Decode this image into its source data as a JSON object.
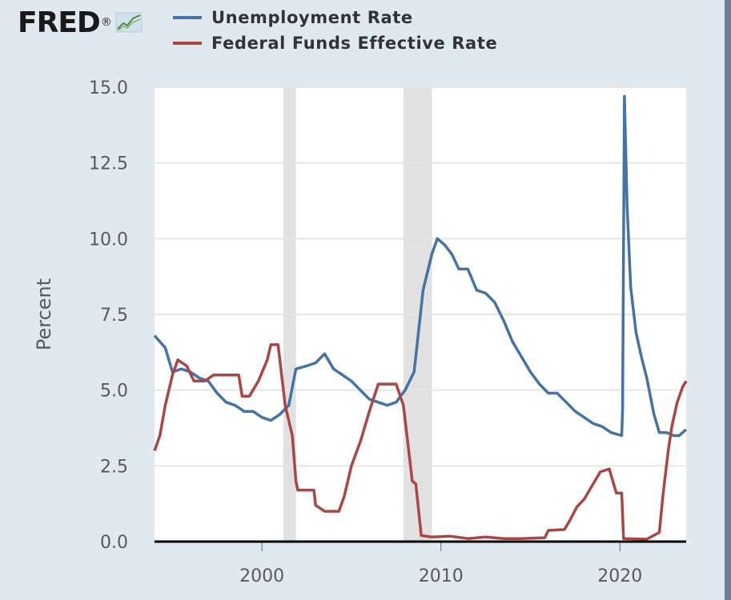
{
  "logo": {
    "text": "FRED",
    "mark": "®",
    "icon": "trend-line-icon"
  },
  "colors": {
    "unemployment": "#4572a7",
    "fedfunds": "#aa4643",
    "recession": "#e1e1e1",
    "grid": "#e6e6e6",
    "plot_bg": "#ffffff",
    "page_bg": "#e1e9f0"
  },
  "chart_data": {
    "type": "line",
    "title": "",
    "xlabel": "",
    "ylabel": "Percent",
    "xlim": [
      1994.0,
      2023.7
    ],
    "ylim": [
      0,
      15
    ],
    "y_ticks": [
      "0.0",
      "2.5",
      "5.0",
      "7.5",
      "10.0",
      "12.5",
      "15.0"
    ],
    "y_tick_values": [
      0,
      2.5,
      5,
      7.5,
      10,
      12.5,
      15
    ],
    "x_ticks": [
      "2000",
      "2010",
      "2020"
    ],
    "x_tick_values": [
      2000,
      2010,
      2020
    ],
    "grid": true,
    "legend_position": "top",
    "recessions": [
      [
        2001.2,
        2001.9
      ],
      [
        2007.9,
        2009.5
      ]
    ],
    "series": [
      {
        "name": "Unemployment Rate",
        "color": "#4572a7",
        "points": [
          [
            1994.0,
            6.8
          ],
          [
            1994.3,
            6.6
          ],
          [
            1994.6,
            6.4
          ],
          [
            1995.0,
            5.6
          ],
          [
            1995.5,
            5.7
          ],
          [
            1996.0,
            5.6
          ],
          [
            1996.5,
            5.4
          ],
          [
            1997.0,
            5.3
          ],
          [
            1997.5,
            4.9
          ],
          [
            1998.0,
            4.6
          ],
          [
            1998.5,
            4.5
          ],
          [
            1999.0,
            4.3
          ],
          [
            1999.5,
            4.3
          ],
          [
            2000.0,
            4.1
          ],
          [
            2000.5,
            4.0
          ],
          [
            2001.0,
            4.2
          ],
          [
            2001.5,
            4.5
          ],
          [
            2001.9,
            5.7
          ],
          [
            2002.5,
            5.8
          ],
          [
            2003.0,
            5.9
          ],
          [
            2003.5,
            6.2
          ],
          [
            2004.0,
            5.7
          ],
          [
            2004.5,
            5.5
          ],
          [
            2005.0,
            5.3
          ],
          [
            2005.5,
            5.0
          ],
          [
            2006.0,
            4.7
          ],
          [
            2006.5,
            4.6
          ],
          [
            2007.0,
            4.5
          ],
          [
            2007.5,
            4.6
          ],
          [
            2008.0,
            5.0
          ],
          [
            2008.5,
            5.6
          ],
          [
            2009.0,
            8.3
          ],
          [
            2009.5,
            9.5
          ],
          [
            2009.8,
            10.0
          ],
          [
            2010.2,
            9.8
          ],
          [
            2010.6,
            9.5
          ],
          [
            2011.0,
            9.0
          ],
          [
            2011.5,
            9.0
          ],
          [
            2012.0,
            8.3
          ],
          [
            2012.5,
            8.2
          ],
          [
            2013.0,
            7.9
          ],
          [
            2013.5,
            7.3
          ],
          [
            2014.0,
            6.6
          ],
          [
            2014.5,
            6.1
          ],
          [
            2015.0,
            5.6
          ],
          [
            2015.5,
            5.2
          ],
          [
            2016.0,
            4.9
          ],
          [
            2016.5,
            4.9
          ],
          [
            2017.0,
            4.6
          ],
          [
            2017.5,
            4.3
          ],
          [
            2018.0,
            4.1
          ],
          [
            2018.5,
            3.9
          ],
          [
            2019.0,
            3.8
          ],
          [
            2019.5,
            3.6
          ],
          [
            2020.1,
            3.5
          ],
          [
            2020.15,
            4.4
          ],
          [
            2020.25,
            14.7
          ],
          [
            2020.4,
            11.1
          ],
          [
            2020.6,
            8.4
          ],
          [
            2020.9,
            6.9
          ],
          [
            2021.2,
            6.1
          ],
          [
            2021.5,
            5.4
          ],
          [
            2021.9,
            4.2
          ],
          [
            2022.2,
            3.6
          ],
          [
            2022.6,
            3.6
          ],
          [
            2023.0,
            3.5
          ],
          [
            2023.3,
            3.5
          ],
          [
            2023.7,
            3.7
          ]
        ]
      },
      {
        "name": "Federal Funds Effective Rate",
        "color": "#aa4643",
        "points": [
          [
            1994.0,
            3.0
          ],
          [
            1994.3,
            3.5
          ],
          [
            1994.6,
            4.5
          ],
          [
            1995.0,
            5.5
          ],
          [
            1995.3,
            6.0
          ],
          [
            1995.8,
            5.8
          ],
          [
            1996.2,
            5.3
          ],
          [
            1996.8,
            5.3
          ],
          [
            1997.3,
            5.5
          ],
          [
            1998.0,
            5.5
          ],
          [
            1998.7,
            5.5
          ],
          [
            1998.9,
            4.8
          ],
          [
            1999.3,
            4.8
          ],
          [
            1999.8,
            5.3
          ],
          [
            2000.3,
            6.0
          ],
          [
            2000.5,
            6.5
          ],
          [
            2000.9,
            6.5
          ],
          [
            2001.3,
            4.5
          ],
          [
            2001.7,
            3.5
          ],
          [
            2001.9,
            2.0
          ],
          [
            2002.0,
            1.7
          ],
          [
            2002.9,
            1.7
          ],
          [
            2003.0,
            1.2
          ],
          [
            2003.5,
            1.0
          ],
          [
            2004.3,
            1.0
          ],
          [
            2004.6,
            1.5
          ],
          [
            2005.0,
            2.5
          ],
          [
            2005.5,
            3.3
          ],
          [
            2006.0,
            4.3
          ],
          [
            2006.5,
            5.2
          ],
          [
            2007.5,
            5.2
          ],
          [
            2007.9,
            4.5
          ],
          [
            2008.2,
            3.0
          ],
          [
            2008.4,
            2.0
          ],
          [
            2008.6,
            1.9
          ],
          [
            2008.9,
            0.2
          ],
          [
            2009.5,
            0.15
          ],
          [
            2010.5,
            0.18
          ],
          [
            2011.5,
            0.1
          ],
          [
            2012.5,
            0.15
          ],
          [
            2013.5,
            0.1
          ],
          [
            2014.5,
            0.1
          ],
          [
            2015.8,
            0.13
          ],
          [
            2016.0,
            0.37
          ],
          [
            2016.9,
            0.4
          ],
          [
            2017.2,
            0.7
          ],
          [
            2017.6,
            1.15
          ],
          [
            2018.0,
            1.4
          ],
          [
            2018.5,
            1.9
          ],
          [
            2018.9,
            2.3
          ],
          [
            2019.4,
            2.4
          ],
          [
            2019.8,
            1.6
          ],
          [
            2020.1,
            1.6
          ],
          [
            2020.2,
            0.1
          ],
          [
            2021.5,
            0.08
          ],
          [
            2022.2,
            0.3
          ],
          [
            2022.4,
            1.5
          ],
          [
            2022.7,
            3.0
          ],
          [
            2022.9,
            3.8
          ],
          [
            2023.2,
            4.6
          ],
          [
            2023.5,
            5.1
          ],
          [
            2023.7,
            5.3
          ]
        ]
      }
    ]
  }
}
